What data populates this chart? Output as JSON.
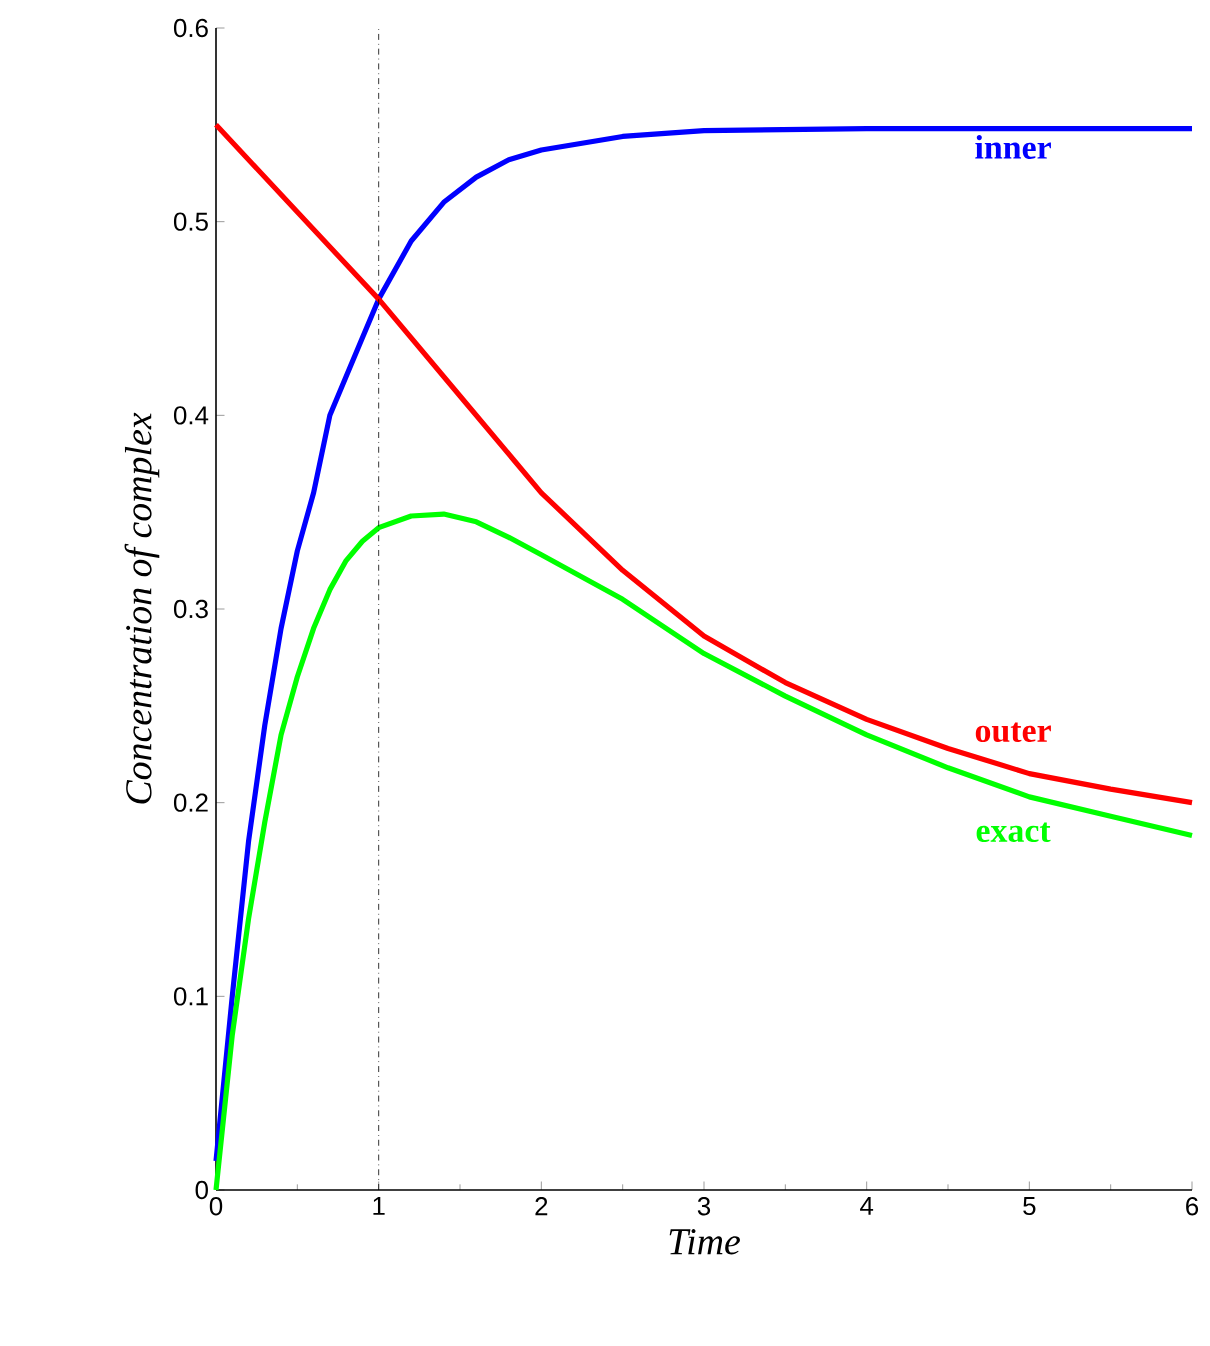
{
  "chart_data": {
    "type": "line",
    "xlabel": "*Time*",
    "ylabel": "*Concentration of complex*",
    "xlim": [
      0,
      6
    ],
    "ylim": [
      0,
      0.6
    ],
    "xticks": [
      0,
      1,
      2,
      3,
      4,
      5,
      6
    ],
    "yticks": [
      0,
      0.1,
      0.2,
      0.3,
      0.4,
      0.5,
      0.6
    ],
    "grid": false,
    "legend": false,
    "line_style": "solid",
    "ref_lines": [
      {
        "axis": "x",
        "value": 1,
        "color": "#000000",
        "line_style": "dashdot"
      }
    ],
    "series": [
      {
        "name": "inner",
        "color": "#0000ff",
        "x": [
          0,
          0.1,
          0.2,
          0.3,
          0.4,
          0.5,
          0.6,
          0.7,
          0.8,
          0.9,
          1.0,
          1.2,
          1.4,
          1.6,
          1.8,
          2.0,
          2.5,
          3,
          4,
          5,
          6
        ],
        "values": [
          0.015,
          0.1,
          0.18,
          0.24,
          0.29,
          0.33,
          0.36,
          0.4,
          0.42,
          0.44,
          0.46,
          0.49,
          0.51,
          0.523,
          0.532,
          0.537,
          0.544,
          0.547,
          0.548,
          0.548,
          0.548
        ]
      },
      {
        "name": "outer",
        "color": "#ff0000",
        "x": [
          0,
          0.5,
          1,
          1.5,
          2,
          2.5,
          3,
          3.5,
          4,
          4.5,
          5,
          5.5,
          6
        ],
        "values": [
          0.55,
          0.505,
          0.46,
          0.41,
          0.36,
          0.32,
          0.286,
          0.262,
          0.243,
          0.228,
          0.215,
          0.207,
          0.2
        ]
      },
      {
        "name": "exact",
        "color": "#00ff00",
        "x": [
          0,
          0.1,
          0.2,
          0.3,
          0.4,
          0.5,
          0.6,
          0.7,
          0.8,
          0.9,
          1.0,
          1.2,
          1.4,
          1.6,
          1.8,
          2.0,
          2.5,
          3,
          3.5,
          4,
          4.5,
          5,
          5.5,
          6
        ],
        "values": [
          0,
          0.08,
          0.14,
          0.19,
          0.235,
          0.265,
          0.29,
          0.31,
          0.325,
          0.335,
          0.342,
          0.348,
          0.349,
          0.345,
          0.337,
          0.328,
          0.305,
          0.277,
          0.255,
          0.235,
          0.218,
          0.203,
          0.193,
          0.183
        ]
      }
    ]
  }
}
